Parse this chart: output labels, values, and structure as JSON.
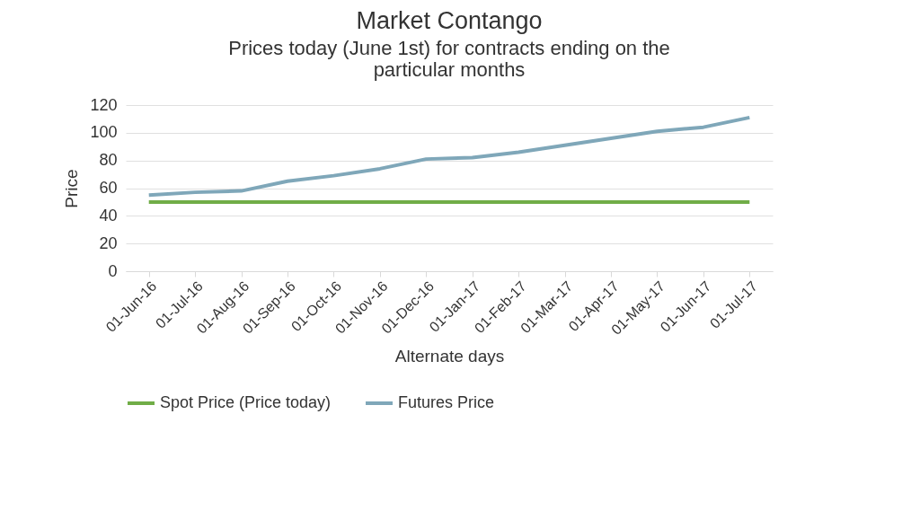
{
  "chart_data": {
    "type": "line",
    "title": "Market Contango",
    "subtitle": "Prices today (June 1st) for contracts ending on the particular months",
    "xlabel": "Alternate days",
    "ylabel": "Price",
    "categories": [
      "01-Jun-16",
      "01-Jul-16",
      "01-Aug-16",
      "01-Sep-16",
      "01-Oct-16",
      "01-Nov-16",
      "01-Dec-16",
      "01-Jan-17",
      "01-Feb-17",
      "01-Mar-17",
      "01-Apr-17",
      "01-May-17",
      "01-Jun-17",
      "01-Jul-17"
    ],
    "series": [
      {
        "name": "Spot Price (Price today)",
        "color": "#70ad47",
        "values": [
          50,
          50,
          50,
          50,
          50,
          50,
          50,
          50,
          50,
          50,
          50,
          50,
          50,
          50
        ]
      },
      {
        "name": "Futures Price",
        "color": "#7fa7b9",
        "values": [
          55,
          57,
          58,
          65,
          69,
          74,
          81,
          82,
          86,
          91,
          96,
          101,
          104,
          111
        ]
      }
    ],
    "ylim": [
      0,
      120
    ],
    "yticks": [
      0,
      20,
      40,
      60,
      80,
      100,
      120
    ],
    "grid": "y",
    "legend": "bottom",
    "line_style": "solid"
  }
}
